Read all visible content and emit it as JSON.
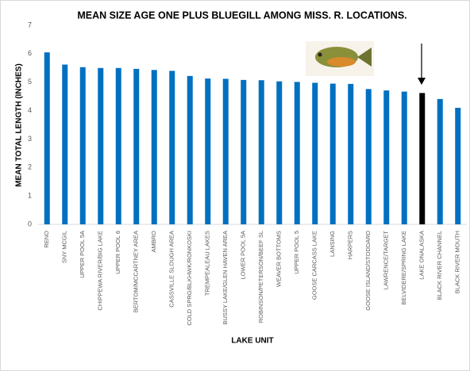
{
  "chart_data": {
    "type": "bar",
    "title": "MEAN SIZE AGE ONE PLUS BLUEGILL AMONG MISS. R. LOCATIONS.",
    "x_label": "LAKE UNIT",
    "y_label": "MEAN TOTAL LENGTH (INCHES)",
    "categories": [
      "RENO",
      "SNY MCGIL",
      "UPPER POOL 5A",
      "CHIPPEWA RIVER/BIG LAKE",
      "UPPER POOL 6",
      "BERTOM/MCCARTNEY AREA",
      "AMBRO",
      "CASSVILLE SLOUGH AREA",
      "COLD SPRG/BLKHWK/RONKOSKI",
      "TREMPEALEAU LAKES",
      "BUSSY LAKE/GLEN HAVEN AREA",
      "LOWER POOL 5A",
      "ROBINSON/PETERSON/BEEF SL",
      "WEAVER BOTTOMS",
      "UPPER POOL 5",
      "GOOSE CARCASS LAKE",
      "LANSING",
      "HARPERS",
      "GOOSE ISLAND/STODDARD",
      "LAWRENCE/TARGET",
      "BELVIDERE/SPRING LAKE",
      "LAKE ONALASKA",
      "BLACK RIVER CHANNEL",
      "BLACK RIVER MOUTH"
    ],
    "values": [
      6.05,
      5.62,
      5.53,
      5.5,
      5.5,
      5.47,
      5.43,
      5.4,
      5.22,
      5.13,
      5.12,
      5.08,
      5.07,
      5.03,
      5.01,
      4.98,
      4.95,
      4.94,
      4.76,
      4.71,
      4.67,
      4.62,
      4.41,
      4.1
    ],
    "colors": [
      "#0070c0",
      "#0070c0",
      "#0070c0",
      "#0070c0",
      "#0070c0",
      "#0070c0",
      "#0070c0",
      "#0070c0",
      "#0070c0",
      "#0070c0",
      "#0070c0",
      "#0070c0",
      "#0070c0",
      "#0070c0",
      "#0070c0",
      "#0070c0",
      "#0070c0",
      "#0070c0",
      "#0070c0",
      "#0070c0",
      "#0070c0",
      "#000000",
      "#0070c0",
      "#0070c0"
    ],
    "ylim": [
      0,
      7
    ],
    "yticks": [
      0,
      1,
      2,
      3,
      4,
      5,
      6,
      7
    ]
  }
}
